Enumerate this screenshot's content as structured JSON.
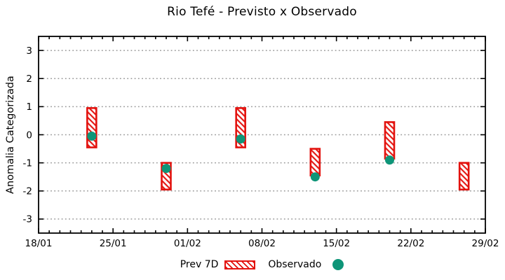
{
  "chart_data": {
    "type": "bar",
    "subtype": "range-bars-with-scatter-overlay",
    "title": "Rio Tefé - Previsto x Observado",
    "xlabel": "",
    "ylabel": "Anomalia Categorizada",
    "ylim": [
      -3.5,
      3.5
    ],
    "y_ticks": [
      3,
      2,
      1,
      0,
      -1,
      -2,
      -3
    ],
    "grid": {
      "horizontal": true,
      "vertical": false,
      "style": "dotted"
    },
    "x_total_days": 42,
    "x_minor_tick_every_days": 1,
    "x_major_ticks": [
      {
        "label": "18/01",
        "day": 0
      },
      {
        "label": "25/01",
        "day": 7
      },
      {
        "label": "01/02",
        "day": 14
      },
      {
        "label": "08/02",
        "day": 21
      },
      {
        "label": "15/02",
        "day": 28
      },
      {
        "label": "22/02",
        "day": 35
      },
      {
        "label": "29/02",
        "day": 42
      }
    ],
    "colors": {
      "bar": "#e3120e",
      "dot": "#0e9578",
      "grid": "#999999",
      "axis": "#000000"
    },
    "legend": {
      "position": "bottom-center",
      "items": [
        {
          "label": "Prev 7D",
          "swatch": "hatched-bar"
        },
        {
          "label": "Observado",
          "swatch": "filled-circle"
        }
      ]
    },
    "series": [
      {
        "name": "Prev 7D",
        "type": "range-bar",
        "fill_pattern": "diagonal-hatch",
        "points": [
          {
            "date": "23/01",
            "day": 5,
            "low": -0.45,
            "high": 0.95
          },
          {
            "date": "30/01",
            "day": 12,
            "low": -1.95,
            "high": -1.0
          },
          {
            "date": "06/02",
            "day": 19,
            "low": -0.45,
            "high": 0.95
          },
          {
            "date": "13/02",
            "day": 26,
            "low": -1.45,
            "high": -0.5
          },
          {
            "date": "20/02",
            "day": 33,
            "low": -0.85,
            "high": 0.45
          },
          {
            "date": "27/02",
            "day": 40,
            "low": -1.95,
            "high": -1.0
          }
        ]
      },
      {
        "name": "Observado",
        "type": "scatter",
        "marker": "filled-circle",
        "points": [
          {
            "date": "23/01",
            "day": 5,
            "value": -0.05
          },
          {
            "date": "30/01",
            "day": 12,
            "value": -1.2
          },
          {
            "date": "06/02",
            "day": 19,
            "value": -0.15
          },
          {
            "date": "13/02",
            "day": 26,
            "value": -1.5
          },
          {
            "date": "20/02",
            "day": 33,
            "value": -0.9
          }
        ]
      }
    ]
  }
}
